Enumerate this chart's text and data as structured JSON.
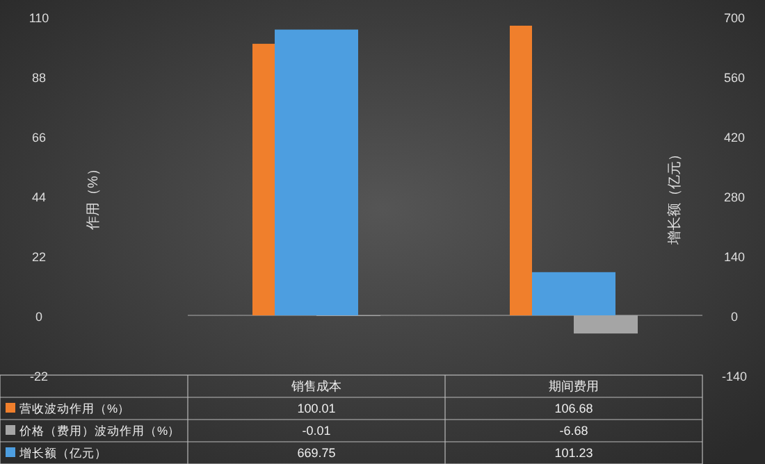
{
  "chart_data": {
    "type": "bar",
    "ylabel": "作用（%）",
    "y2label": "增长额（亿元）",
    "categories": [
      "销售成本",
      "期间费用"
    ],
    "series": [
      {
        "name": "营收波动作用（%）",
        "color": "#f07f2c",
        "values": [
          100.01,
          106.68
        ]
      },
      {
        "name": "价格（费用）波动作用（%）",
        "color": "#a5a5a5",
        "values": [
          -0.01,
          -6.68
        ]
      },
      {
        "name": "增长额（亿元）",
        "color": "#4d9ee0",
        "values": [
          669.75,
          101.23
        ],
        "axis": "y2"
      }
    ],
    "ylim": [
      -22,
      110
    ],
    "yticks": [
      -22,
      0,
      22,
      44,
      66,
      88,
      110
    ],
    "y2lim": [
      -140,
      700
    ],
    "y2ticks": [
      -140,
      0,
      140,
      280,
      420,
      560,
      700
    ],
    "data_labels": true,
    "legend": "bottom"
  }
}
